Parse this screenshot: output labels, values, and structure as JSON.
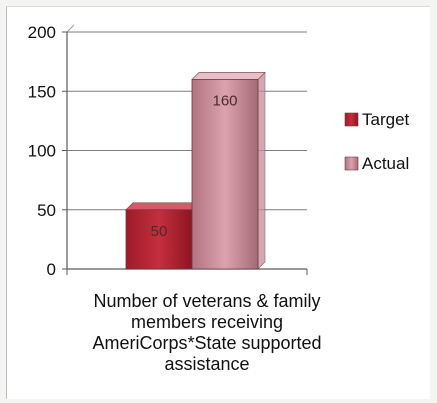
{
  "chart_data": {
    "type": "bar",
    "title": "",
    "xlabel": "Number of veterans & family members receiving AmeriCorps*State supported assistance",
    "ylabel": "",
    "categories": [
      "Number of veterans & family members receiving AmeriCorps*State supported assistance"
    ],
    "series": [
      {
        "name": "Target",
        "values": [
          50
        ],
        "color": "#b4212f"
      },
      {
        "name": "Actual",
        "values": [
          160
        ],
        "color": "#c78a96"
      }
    ],
    "ylim": [
      0,
      200
    ],
    "yticks": [
      "0",
      "50",
      "100",
      "150",
      "200"
    ],
    "data_labels": [
      "50",
      "160"
    ],
    "grid": true,
    "legend": "right",
    "style": "3d"
  }
}
